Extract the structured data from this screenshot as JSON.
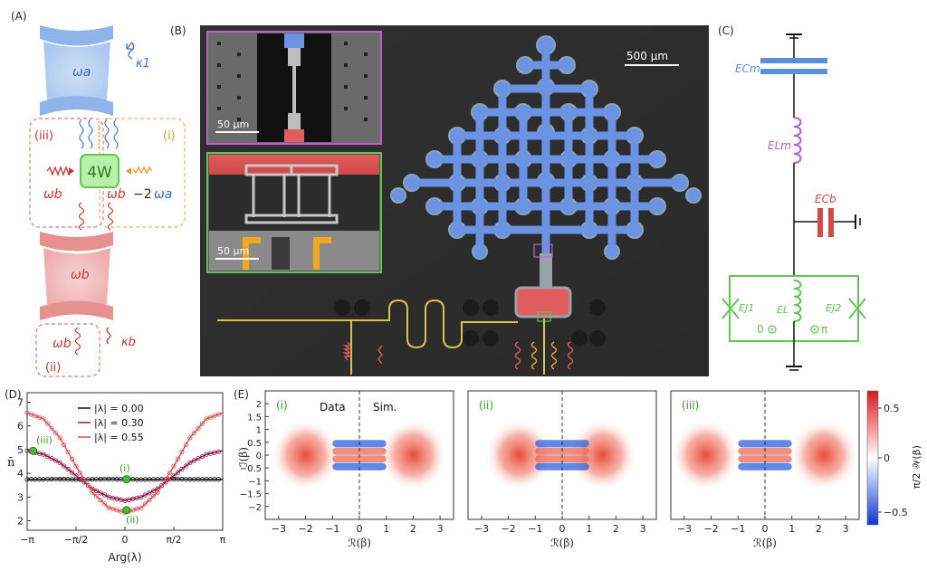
{
  "panels": {
    "A": {
      "label": "(A)",
      "omega_a": "ωa",
      "kappa_1": "κ1",
      "four_wave": "4W",
      "omega_b_left": "ωb",
      "omega_b_right": "ωb",
      "minus_two": "−2",
      "omega_a_sub": "ωa",
      "label_i": "(i)",
      "label_ii": "(ii)",
      "label_iii": "(iii)",
      "omega_b_res": "ωb",
      "omega_b_bottom": "ωb",
      "kappa_b": "κb"
    },
    "B": {
      "label": "(B)",
      "scale_main": "500 μm",
      "scale_inset1": "50 μm",
      "scale_inset2": "50 μm"
    },
    "C": {
      "label": "(C)",
      "E_Cm": "ECm",
      "E_Lm": "ELm",
      "E_Cb": "ECb",
      "E_J1": "EJ1",
      "E_L": "EL",
      "E_J2": "EJ2",
      "zero": "0",
      "pi": "π"
    },
    "D": {
      "label": "(D)",
      "ylabel": "n̄",
      "xlabel": "Arg(λ)",
      "point_i": "(i)",
      "point_ii": "(ii)",
      "point_iii": "(iii)",
      "legend": [
        "|λ| = 0.00",
        "|λ| = 0.30",
        "|λ| = 0.55"
      ]
    },
    "E": {
      "label": "(E)",
      "data_label": "Data",
      "sim_label": "Sim.",
      "subpanels": [
        "(i)",
        "(ii)",
        "(iii)"
      ],
      "ylabel": "ℐ(β)",
      "xlabel": "ℛ(β)",
      "colorbar_label": "π/2 𝒲(β)",
      "colorbar_ticks": [
        "0.5",
        "0",
        "−0.5"
      ]
    }
  },
  "colors": {
    "blue": "#5b8fd9",
    "red": "#d9534f",
    "green": "#6dd35b",
    "orange": "#f0a830",
    "purple": "#b65fcf",
    "dark_red": "#8b1a1a"
  },
  "chart_data": [
    {
      "type": "scatter",
      "panel": "D",
      "xlabel": "Arg(λ)",
      "ylabel": "n̄",
      "xlim": [
        -3.1416,
        3.1416
      ],
      "ylim": [
        1.6,
        7.4
      ],
      "x_ticks": [
        "−π",
        "−π/2",
        "0",
        "π/2",
        "π"
      ],
      "y_ticks": [
        "2",
        "3",
        "4",
        "5",
        "6",
        "7"
      ],
      "series": [
        {
          "name": "|λ| = 0.00",
          "color": "#111111",
          "x": [
            -3.14,
            -2.62,
            -2.09,
            -1.57,
            -1.05,
            -0.52,
            0,
            0.52,
            1.05,
            1.57,
            2.09,
            2.62,
            3.14
          ],
          "y": [
            3.75,
            3.75,
            3.76,
            3.74,
            3.75,
            3.76,
            3.75,
            3.74,
            3.75,
            3.76,
            3.75,
            3.75,
            3.75
          ]
        },
        {
          "name": "|λ| = 0.30",
          "color": "#8b1a4a",
          "x": [
            -3.14,
            -2.62,
            -2.09,
            -1.57,
            -1.05,
            -0.52,
            0,
            0.52,
            1.05,
            1.57,
            2.09,
            2.62,
            3.14
          ],
          "y": [
            4.95,
            4.8,
            4.45,
            3.9,
            3.35,
            3.0,
            2.85,
            3.0,
            3.35,
            3.9,
            4.45,
            4.8,
            4.95
          ]
        },
        {
          "name": "|λ| = 0.55",
          "color": "#d9534f",
          "x": [
            -3.14,
            -2.62,
            -2.09,
            -1.57,
            -1.05,
            -0.52,
            0,
            0.52,
            1.05,
            1.57,
            2.09,
            2.62,
            3.14
          ],
          "y": [
            6.55,
            6.3,
            5.5,
            4.3,
            3.2,
            2.55,
            2.35,
            2.55,
            3.2,
            4.3,
            5.5,
            6.3,
            6.55
          ]
        }
      ],
      "highlighted_points": [
        {
          "label": "(i)",
          "x": 0.05,
          "y": 3.75
        },
        {
          "label": "(ii)",
          "x": 0.05,
          "y": 2.45
        },
        {
          "label": "(iii)",
          "x": -2.95,
          "y": 4.95
        }
      ]
    },
    {
      "type": "heatmap",
      "panel": "E",
      "xlabel": "ℛ(β)",
      "ylabel": "ℐ(β)",
      "xlim": [
        -3.5,
        3.5
      ],
      "ylim": [
        -2.5,
        2.5
      ],
      "x_ticks": [
        "−3",
        "−2",
        "−1",
        "0",
        "1",
        "2",
        "3"
      ],
      "y_ticks": [
        "2",
        "1.5",
        "1",
        "0.5",
        "0",
        "−0.5",
        "−1",
        "−1.5",
        "−2"
      ],
      "colorbar_range": [
        -0.6,
        0.6
      ],
      "subpanels": [
        {
          "label": "(i)",
          "lobes_x": [
            -2.0,
            2.0
          ]
        },
        {
          "label": "(ii)",
          "lobes_x": [
            -1.6,
            1.5
          ]
        },
        {
          "label": "(iii)",
          "lobes_x": [
            -2.2,
            2.2
          ]
        }
      ]
    }
  ]
}
